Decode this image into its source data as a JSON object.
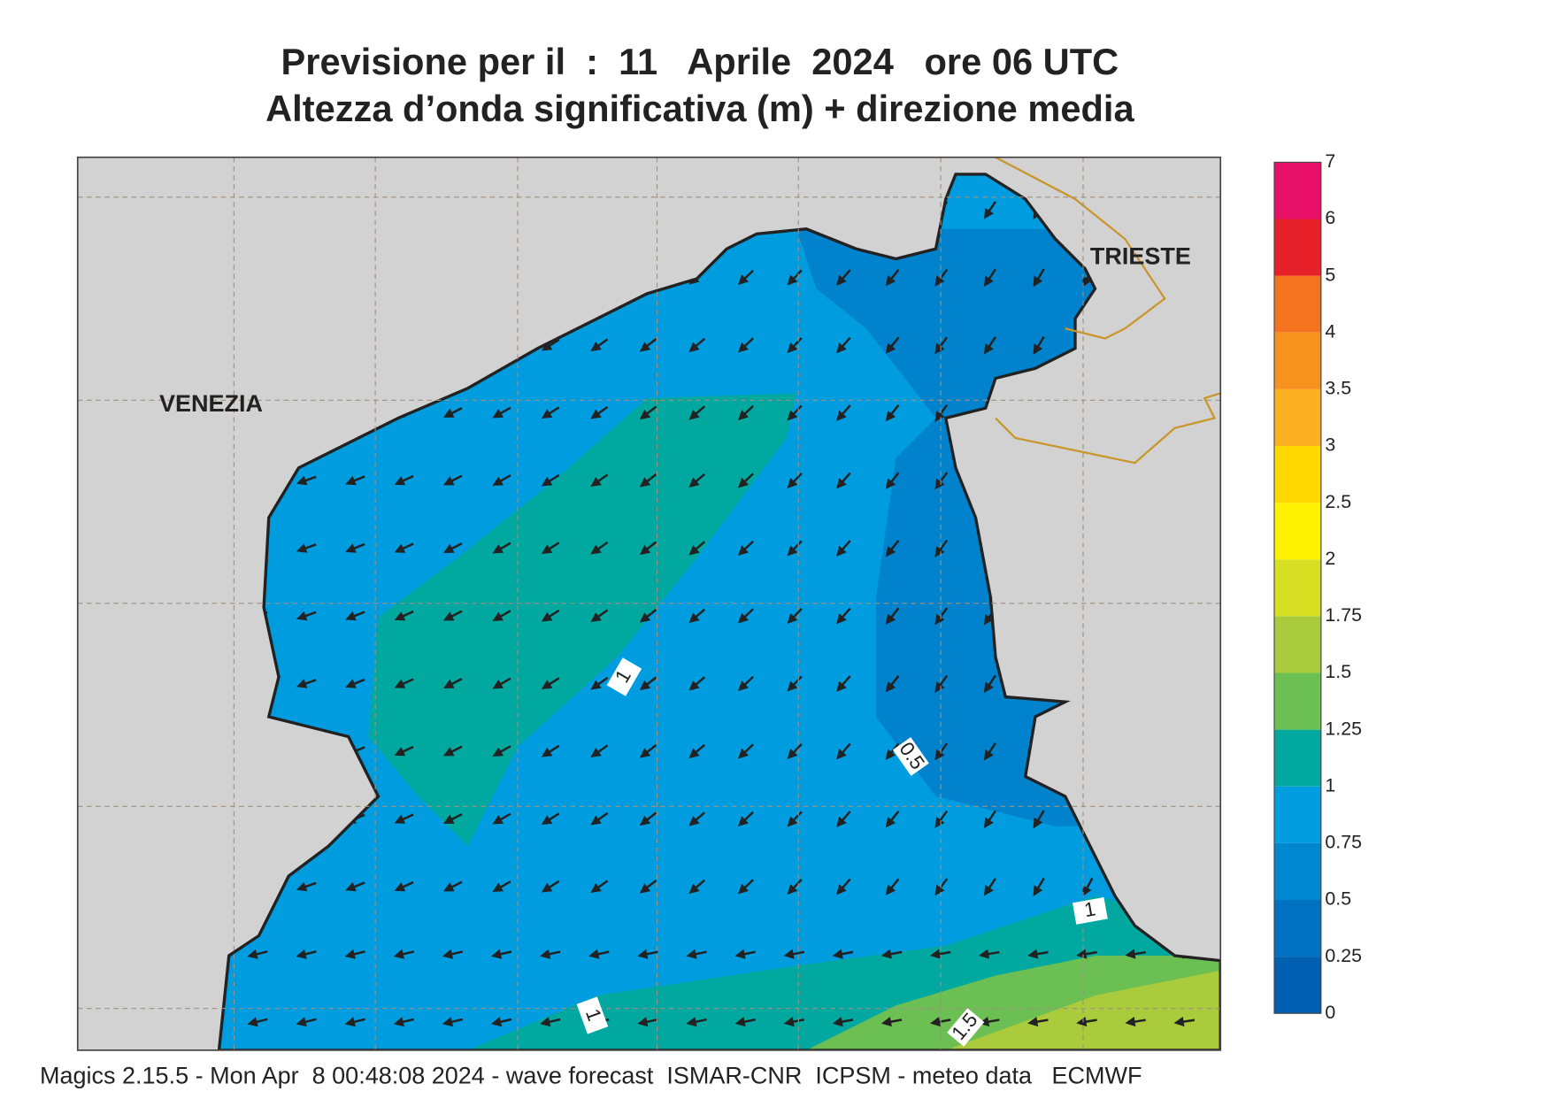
{
  "title": [
    "Previsione per il  :  11   Aprile  2024   ore 06 UTC",
    "Altezza d’onda significativa (m) + direzione media"
  ],
  "places": [
    "VENEZIA",
    "TRIESTE"
  ],
  "contour_labels": [
    1,
    0.5,
    1,
    1,
    1.5
  ],
  "legend": {
    "levels": [
      0,
      0.25,
      0.5,
      0.75,
      1,
      1.25,
      1.5,
      1.75,
      2,
      2.5,
      3,
      3.5,
      4,
      5,
      6,
      7
    ],
    "colors": [
      "#005fb0",
      "#0072c2",
      "#0087d0",
      "#009ce0",
      "#00a8a0",
      "#6cbf52",
      "#a9cb3c",
      "#d7df22",
      "#fff200",
      "#ffd800",
      "#fdb022",
      "#f8921f",
      "#f3731f",
      "#e8202a",
      "#e9106a"
    ]
  },
  "footer": "Magics 2.15.5 - Mon Apr  8 00:48:08 2024 - wave forecast  ISMAR-CNR  ICPSM - meteo data   ECMWF"
}
